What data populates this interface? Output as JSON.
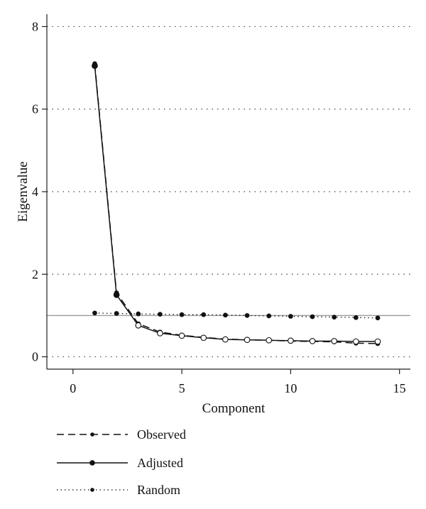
{
  "chart_data": {
    "type": "line",
    "xlabel": "Component",
    "ylabel": "Eigenvalue",
    "xlim": [
      -1.2,
      15.5
    ],
    "ylim": [
      -0.3,
      8.3
    ],
    "xticks": [
      0,
      5,
      10,
      15
    ],
    "yticks": [
      0,
      2,
      4,
      6,
      8
    ],
    "grid": "horizontal dotted",
    "reference_line": {
      "y": 1,
      "color": "#9a9a9a"
    },
    "series": [
      {
        "name": "Observed",
        "style": "dashed",
        "marker": "small-filled",
        "x": [
          1,
          2,
          3,
          4,
          5,
          6,
          7,
          8,
          9,
          10,
          11,
          12,
          13,
          14
        ],
        "y": [
          7.1,
          1.55,
          0.8,
          0.6,
          0.52,
          0.47,
          0.43,
          0.41,
          0.4,
          0.38,
          0.37,
          0.36,
          0.33,
          0.32
        ]
      },
      {
        "name": "Adjusted",
        "style": "solid",
        "marker": "filled-and-open",
        "x": [
          1,
          2,
          3,
          4,
          5,
          6,
          7,
          8,
          9,
          10,
          11,
          12,
          13,
          14
        ],
        "y": [
          7.05,
          1.5,
          0.76,
          0.57,
          0.51,
          0.46,
          0.42,
          0.41,
          0.4,
          0.39,
          0.38,
          0.38,
          0.37,
          0.37
        ]
      },
      {
        "name": "Random",
        "style": "dotted",
        "marker": "small-filled",
        "x": [
          1,
          2,
          3,
          4,
          5,
          6,
          7,
          8,
          9,
          10,
          11,
          12,
          13,
          14
        ],
        "y": [
          1.06,
          1.05,
          1.04,
          1.03,
          1.02,
          1.02,
          1.01,
          1.0,
          0.99,
          0.98,
          0.97,
          0.96,
          0.95,
          0.94
        ]
      }
    ],
    "legend": {
      "placement": "bottom-left",
      "entries": [
        "Observed",
        "Adjusted",
        "Random"
      ]
    }
  }
}
